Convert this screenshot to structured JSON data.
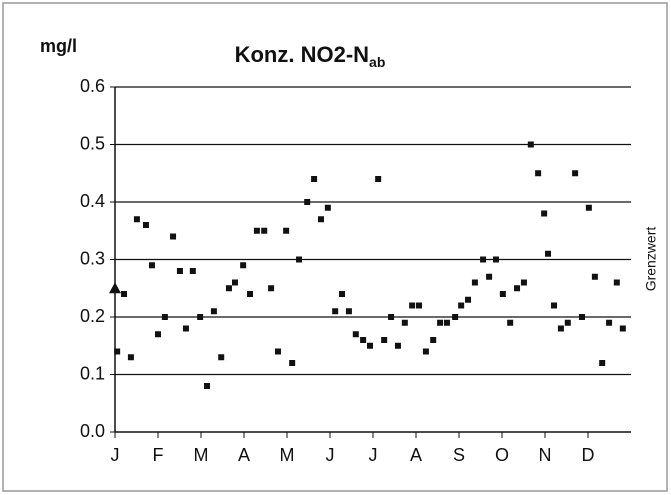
{
  "chart_data": {
    "type": "scatter",
    "title": "Konz. NO2-N",
    "title_subscript": "ab",
    "y_label": "mg/l",
    "threshold_label": "Grenzwert",
    "threshold": 0.25,
    "color": "#111111",
    "xlim": [
      0,
      12
    ],
    "xticks": [
      {
        "value": 0,
        "label": "J"
      },
      {
        "value": 1,
        "label": "F"
      },
      {
        "value": 2,
        "label": "M"
      },
      {
        "value": 3,
        "label": "A"
      },
      {
        "value": 4,
        "label": "M"
      },
      {
        "value": 5,
        "label": "J"
      },
      {
        "value": 6,
        "label": "J"
      },
      {
        "value": 7,
        "label": "A"
      },
      {
        "value": 8,
        "label": "S"
      },
      {
        "value": 9,
        "label": "O"
      },
      {
        "value": 10,
        "label": "N"
      },
      {
        "value": 11,
        "label": "D"
      }
    ],
    "ylim": [
      0,
      0.6
    ],
    "yticks": [
      {
        "value": 0,
        "label": "0.0"
      },
      0.1,
      0.2,
      0.3,
      0.4,
      0.5,
      0.6
    ],
    "grid": true,
    "x": [
      0.05,
      0.21,
      0.37,
      0.51,
      0.72,
      0.86,
      1.0,
      1.16,
      1.35,
      1.51,
      1.65,
      1.81,
      1.98,
      2.14,
      2.3,
      2.47,
      2.65,
      2.79,
      2.98,
      3.14,
      3.3,
      3.47,
      3.63,
      3.79,
      3.98,
      4.12,
      4.28,
      4.47,
      4.63,
      4.79,
      4.95,
      5.12,
      5.28,
      5.44,
      5.6,
      5.77,
      5.93,
      6.12,
      6.26,
      6.42,
      6.58,
      6.74,
      6.91,
      7.07,
      7.23,
      7.4,
      7.56,
      7.72,
      7.91,
      8.05,
      8.21,
      8.37,
      8.56,
      8.7,
      8.86,
      9.02,
      9.19,
      9.35,
      9.51,
      9.67,
      9.84,
      9.98,
      10.07,
      10.21,
      10.37,
      10.53,
      10.7,
      10.86,
      11.02,
      11.16,
      11.33,
      11.49,
      11.67,
      11.81
    ],
    "values": [
      0.14,
      0.24,
      0.13,
      0.37,
      0.36,
      0.29,
      0.17,
      0.2,
      0.34,
      0.28,
      0.18,
      0.28,
      0.2,
      0.08,
      0.21,
      0.13,
      0.25,
      0.26,
      0.29,
      0.24,
      0.35,
      0.35,
      0.25,
      0.14,
      0.35,
      0.12,
      0.3,
      0.4,
      0.44,
      0.37,
      0.39,
      0.21,
      0.24,
      0.21,
      0.17,
      0.16,
      0.15,
      0.44,
      0.16,
      0.2,
      0.15,
      0.19,
      0.22,
      0.22,
      0.14,
      0.16,
      0.19,
      0.19,
      0.2,
      0.22,
      0.23,
      0.26,
      0.3,
      0.27,
      0.3,
      0.24,
      0.19,
      0.25,
      0.26,
      0.5,
      0.45,
      0.38,
      0.31,
      0.22,
      0.18,
      0.19,
      0.45,
      0.2,
      0.39,
      0.27,
      0.12,
      0.19,
      0.26,
      0.18
    ]
  }
}
